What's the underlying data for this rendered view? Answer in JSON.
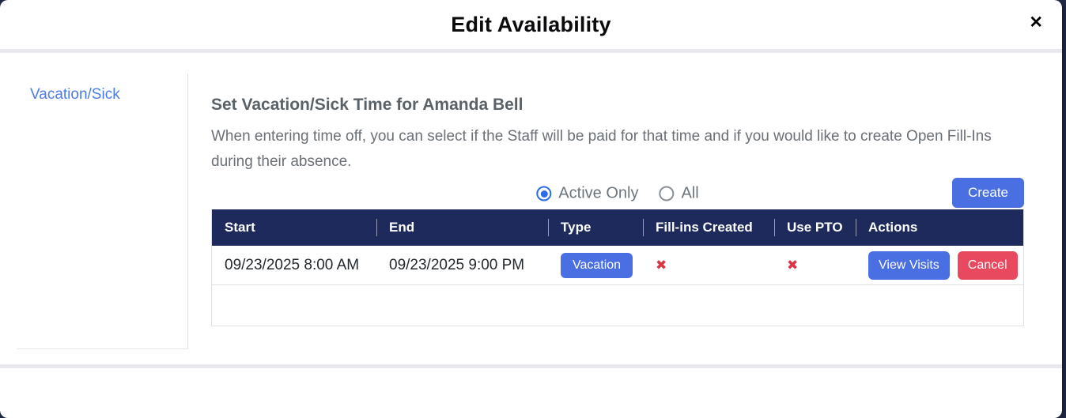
{
  "modal": {
    "title": "Edit Availability",
    "close_glyph": "✕"
  },
  "sidebar": {
    "items": [
      {
        "label": "Vacation/Sick"
      }
    ]
  },
  "content": {
    "heading": "Set Vacation/Sick Time for Amanda Bell",
    "description": "When entering time off, you can select if the Staff will be paid for that time and if you would like to create Open Fill-Ins during their absence.",
    "filters": {
      "options": [
        {
          "label": "Active Only",
          "selected": true
        },
        {
          "label": "All",
          "selected": false
        }
      ]
    },
    "create_label": "Create",
    "table": {
      "columns": [
        "Start",
        "End",
        "Type",
        "Fill-ins Created",
        "Use PTO",
        "Actions"
      ],
      "rows": [
        {
          "start": "09/23/2025 8:00 AM",
          "end": "09/23/2025 9:00 PM",
          "type": "Vacation",
          "fill_ins_created": "✖",
          "use_pto": "✖",
          "actions": {
            "view": "View Visits",
            "cancel": "Cancel"
          }
        }
      ]
    }
  },
  "colors": {
    "accent_blue": "#4a6fe3",
    "danger_red": "#e8495f",
    "x_mark_red": "#dc3545",
    "table_header_bg": "#1f2a5c",
    "link_blue": "#4c7cea",
    "backdrop": "#212946"
  }
}
